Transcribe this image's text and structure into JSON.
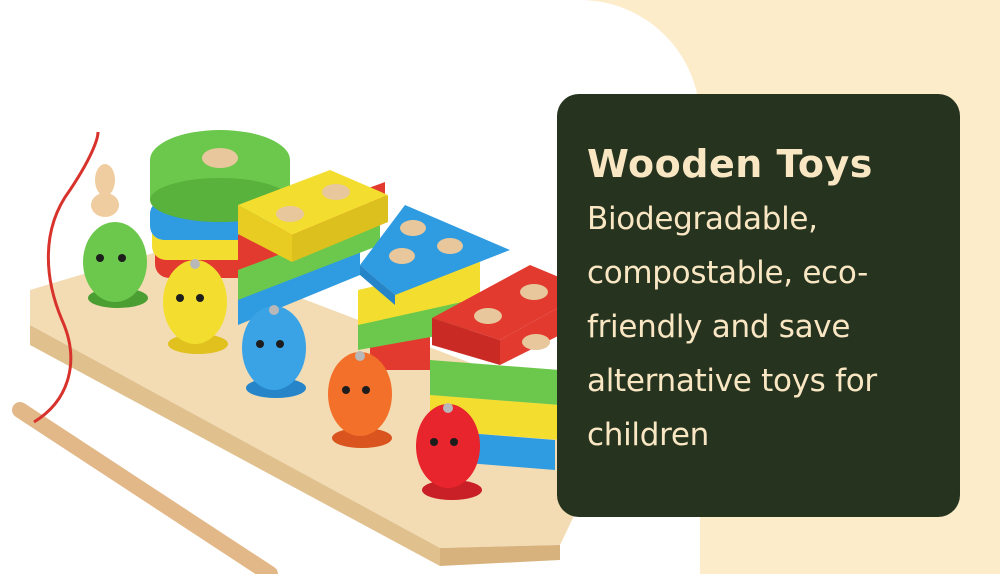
{
  "card": {
    "title": "Wooden Toys",
    "description": "Biodegradable, compostable, eco-friendly and save alternative toys for children"
  },
  "colors": {
    "background": "#fcecc9",
    "card": "#25331f",
    "card_text": "#f9e6c3"
  }
}
